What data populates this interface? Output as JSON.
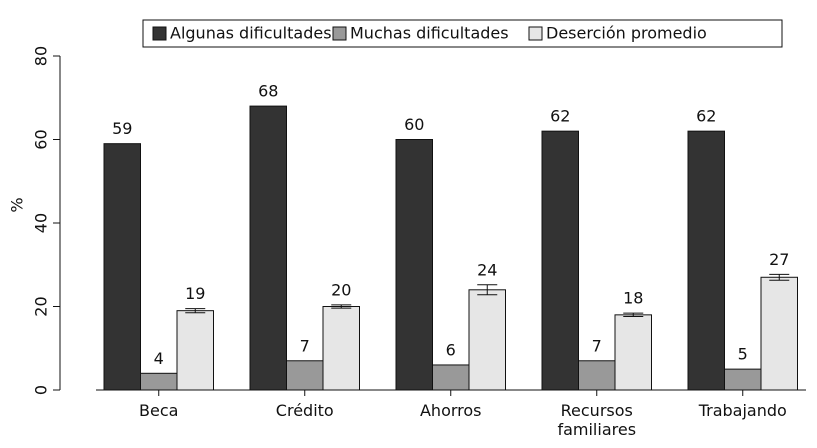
{
  "chart_data": {
    "type": "bar",
    "y_label": "%",
    "categories": [
      "Beca",
      "Crédito",
      "Ahorros",
      "Recursos familiares",
      "Trabajando"
    ],
    "series": [
      {
        "name": "Algunas dificultades",
        "color": "#333333",
        "values": [
          59,
          68,
          60,
          62,
          62
        ]
      },
      {
        "name": "Muchas dificultades",
        "color": "#999999",
        "values": [
          4,
          7,
          6,
          7,
          5
        ]
      },
      {
        "name": "Deserción promedio",
        "color": "#e6e6e6",
        "values": [
          19,
          20,
          24,
          18,
          27
        ],
        "errors": [
          0.5,
          0.4,
          1.2,
          0.4,
          0.7
        ]
      }
    ],
    "ylim": [
      0,
      80
    ],
    "yticks": [
      0,
      20,
      40,
      60,
      80
    ],
    "legend": "top"
  }
}
